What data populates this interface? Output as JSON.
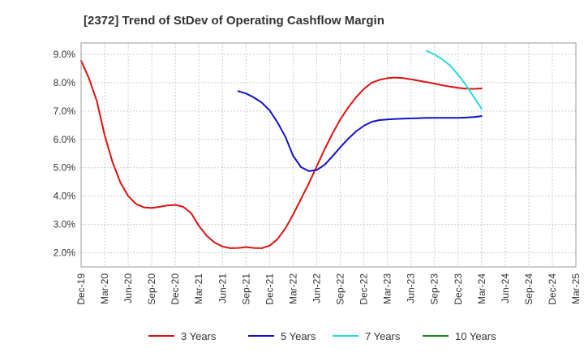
{
  "chart_data": {
    "type": "line",
    "title": "[2372]  Trend of StDev of Operating Cashflow Margin",
    "xlabel": "",
    "ylabel": "",
    "x_ticks": [
      "Dec-19",
      "Mar-20",
      "Jun-20",
      "Sep-20",
      "Dec-20",
      "Mar-21",
      "Jun-21",
      "Sep-21",
      "Dec-21",
      "Mar-22",
      "Jun-22",
      "Sep-22",
      "Dec-22",
      "Mar-23",
      "Jun-23",
      "Sep-23",
      "Dec-23",
      "Mar-24",
      "Jun-24",
      "Sep-24",
      "Dec-24",
      "Mar-25"
    ],
    "y_ticks": [
      "2.0%",
      "3.0%",
      "4.0%",
      "5.0%",
      "6.0%",
      "7.0%",
      "8.0%",
      "9.0%"
    ],
    "y_tick_values": [
      2.0,
      3.0,
      4.0,
      5.0,
      6.0,
      7.0,
      8.0,
      9.0
    ],
    "ylim": [
      1.5,
      9.4
    ],
    "grid": true,
    "legend_position": "bottom",
    "series": [
      {
        "name": "3 Years",
        "color": "#dd1111",
        "x": [
          "Dec-19",
          "Jan-20",
          "Feb-20",
          "Mar-20",
          "Apr-20",
          "May-20",
          "Jun-20",
          "Jul-20",
          "Aug-20",
          "Sep-20",
          "Oct-20",
          "Nov-20",
          "Dec-20",
          "Jan-21",
          "Feb-21",
          "Mar-21",
          "Apr-21",
          "May-21",
          "Jun-21",
          "Jul-21",
          "Aug-21",
          "Sep-21",
          "Oct-21",
          "Nov-21",
          "Dec-21",
          "Jan-22",
          "Feb-22",
          "Mar-22",
          "Apr-22",
          "May-22",
          "Jun-22",
          "Jul-22",
          "Aug-22",
          "Sep-22",
          "Oct-22",
          "Nov-22",
          "Dec-22",
          "Jan-23",
          "Feb-23",
          "Mar-23",
          "Apr-23",
          "May-23",
          "Jun-23",
          "Jul-23",
          "Aug-23",
          "Sep-23",
          "Oct-23",
          "Nov-23",
          "Dec-23",
          "Jan-24",
          "Feb-24",
          "Mar-24"
        ],
        "values": [
          8.78,
          8.15,
          7.35,
          6.15,
          5.2,
          4.48,
          4.0,
          3.72,
          3.6,
          3.58,
          3.62,
          3.67,
          3.69,
          3.62,
          3.4,
          2.95,
          2.6,
          2.36,
          2.22,
          2.16,
          2.17,
          2.2,
          2.17,
          2.16,
          2.25,
          2.48,
          2.85,
          3.35,
          3.9,
          4.45,
          5.05,
          5.65,
          6.2,
          6.7,
          7.12,
          7.48,
          7.78,
          8.0,
          8.1,
          8.16,
          8.18,
          8.16,
          8.12,
          8.07,
          8.02,
          7.97,
          7.91,
          7.86,
          7.82,
          7.79,
          7.78,
          7.8
        ]
      },
      {
        "name": "5 Years",
        "color": "#1111cc",
        "x": [
          "Aug-21",
          "Sep-21",
          "Oct-21",
          "Nov-21",
          "Dec-21",
          "Jan-22",
          "Feb-22",
          "Mar-22",
          "Apr-22",
          "May-22",
          "Jun-22",
          "Jul-22",
          "Aug-22",
          "Sep-22",
          "Oct-22",
          "Nov-22",
          "Dec-22",
          "Jan-23",
          "Feb-23",
          "Mar-23",
          "Apr-23",
          "May-23",
          "Jun-23",
          "Jul-23",
          "Aug-23",
          "Sep-23",
          "Oct-23",
          "Nov-23",
          "Dec-23",
          "Jan-24",
          "Feb-24",
          "Mar-24"
        ],
        "values": [
          7.7,
          7.62,
          7.48,
          7.3,
          7.02,
          6.6,
          6.1,
          5.42,
          5.02,
          4.88,
          4.92,
          5.1,
          5.4,
          5.72,
          6.02,
          6.28,
          6.48,
          6.62,
          6.68,
          6.7,
          6.72,
          6.73,
          6.74,
          6.75,
          6.76,
          6.76,
          6.76,
          6.76,
          6.76,
          6.77,
          6.79,
          6.82
        ]
      },
      {
        "name": "7 Years",
        "color": "#22dddd",
        "x": [
          "Aug-23",
          "Sep-23",
          "Oct-23",
          "Nov-23",
          "Dec-23",
          "Jan-24",
          "Feb-24",
          "Mar-24"
        ],
        "values": [
          9.12,
          9.0,
          8.82,
          8.6,
          8.28,
          7.92,
          7.5,
          7.08
        ]
      },
      {
        "name": "10 Years",
        "color": "#228822",
        "x": [],
        "values": []
      }
    ]
  }
}
